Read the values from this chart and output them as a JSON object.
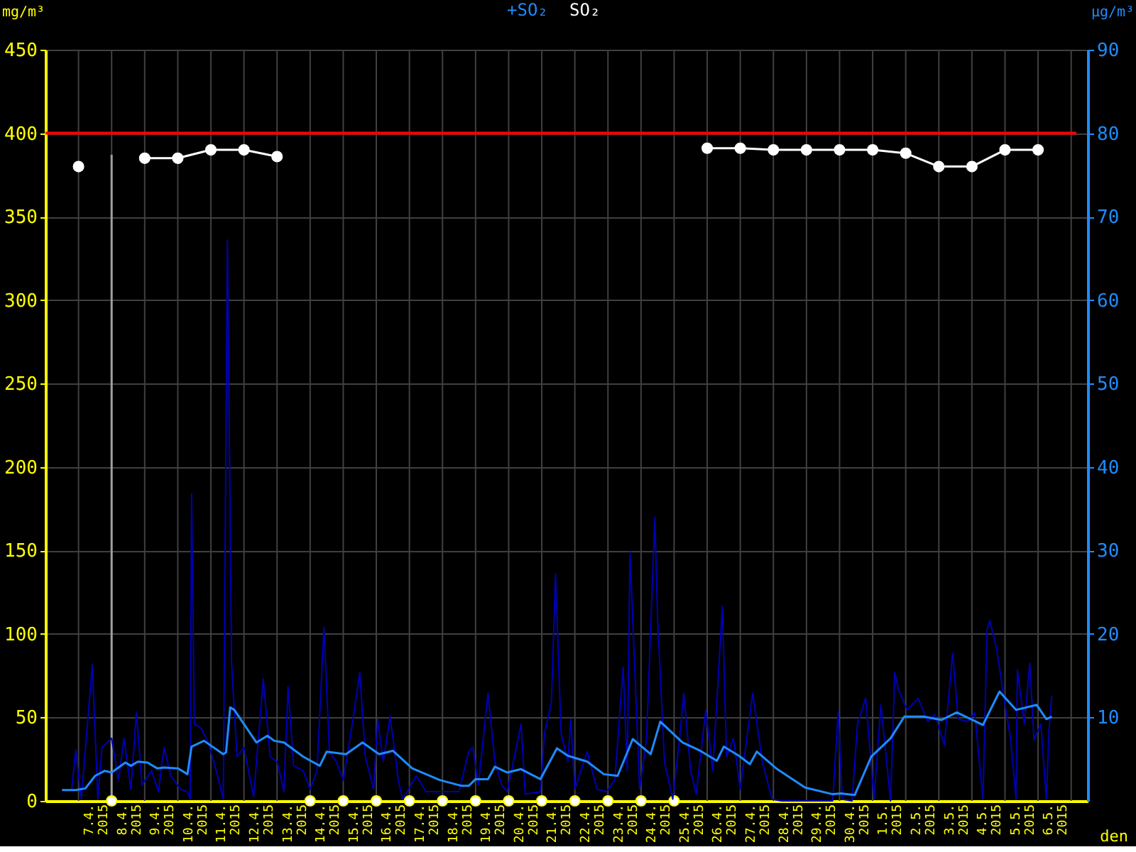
{
  "chart_data": {
    "type": "line",
    "ylabel": "mg/m³",
    "y2label": "µg/m³",
    "xlabel": "den",
    "xlim": [
      "2015-04-06T00:00",
      "2015-05-07T12:00"
    ],
    "ylim": [
      0,
      450
    ],
    "yticks": [
      0,
      50,
      100,
      150,
      200,
      250,
      300,
      350,
      400,
      450
    ],
    "y2lim": [
      0,
      90
    ],
    "y2ticks": [
      10,
      20,
      30,
      40,
      50,
      60,
      70,
      80,
      90
    ],
    "xticks": [
      {
        "value": "2015-04-07T00:00",
        "label": null
      },
      {
        "value": "2015-04-08T00:00",
        "label": null
      },
      {
        "value": "2015-04-09T00:00",
        "label": null
      },
      {
        "value": "2015-04-10T00:00",
        "label": null
      },
      {
        "value": "2015-04-11T00:00",
        "label": null
      },
      {
        "value": "2015-04-12T00:00",
        "label": null
      },
      {
        "value": "2015-04-13T00:00",
        "label": null
      },
      {
        "value": "2015-04-14T00:00",
        "label": null
      },
      {
        "value": "2015-04-15T00:00",
        "label": null
      },
      {
        "value": "2015-04-16T00:00",
        "label": null
      },
      {
        "value": "2015-04-17T00:00",
        "label": null
      },
      {
        "value": "2015-04-18T00:00",
        "label": null
      },
      {
        "value": "2015-04-19T00:00",
        "label": null
      },
      {
        "value": "2015-04-20T00:00",
        "label": null
      },
      {
        "value": "2015-04-21T00:00",
        "label": null
      },
      {
        "value": "2015-04-22T00:00",
        "label": null
      },
      {
        "value": "2015-04-23T00:00",
        "label": null
      },
      {
        "value": "2015-04-24T00:00",
        "label": null
      },
      {
        "value": "2015-04-25T00:00",
        "label": null
      },
      {
        "value": "2015-04-26T00:00",
        "label": null
      },
      {
        "value": "2015-04-27T00:00",
        "label": null
      },
      {
        "value": "2015-04-28T00:00",
        "label": null
      },
      {
        "value": "2015-04-29T00:00",
        "label": null
      },
      {
        "value": "2015-04-30T00:00",
        "label": null
      },
      {
        "value": "2015-05-01T00:00",
        "label": null
      },
      {
        "value": "2015-05-02T00:00",
        "label": null
      },
      {
        "value": "2015-05-03T00:00",
        "label": null
      },
      {
        "value": "2015-05-04T00:00",
        "label": null
      },
      {
        "value": "2015-05-05T00:00",
        "label": null
      },
      {
        "value": "2015-05-06T00:00",
        "label": null
      },
      {
        "value": "2015-05-07T00:00",
        "label": null
      },
      {
        "value": "2015-04-07T12:00",
        "label": "7.4.\n2015"
      },
      {
        "value": "2015-04-08T12:00",
        "label": "8.4.\n2015"
      },
      {
        "value": "2015-04-09T12:00",
        "label": "9.4.\n2015"
      },
      {
        "value": "2015-04-10T12:00",
        "label": "10.4.\n2015"
      },
      {
        "value": "2015-04-11T12:00",
        "label": "11.4.\n2015"
      },
      {
        "value": "2015-04-12T12:00",
        "label": "12.4.\n2015"
      },
      {
        "value": "2015-04-13T12:00",
        "label": "13.4.\n2015"
      },
      {
        "value": "2015-04-14T12:00",
        "label": "14.4.\n2015"
      },
      {
        "value": "2015-04-15T12:00",
        "label": "15.4.\n2015"
      },
      {
        "value": "2015-04-16T12:00",
        "label": "16.4.\n2015"
      },
      {
        "value": "2015-04-17T12:00",
        "label": "17.4.\n2015"
      },
      {
        "value": "2015-04-18T12:00",
        "label": "18.4.\n2015"
      },
      {
        "value": "2015-04-19T12:00",
        "label": "19.4.\n2015"
      },
      {
        "value": "2015-04-20T12:00",
        "label": "20.4.\n2015"
      },
      {
        "value": "2015-04-21T12:00",
        "label": "21.4.\n2015"
      },
      {
        "value": "2015-04-22T12:00",
        "label": "22.4.\n2015"
      },
      {
        "value": "2015-04-23T12:00",
        "label": "23.4.\n2015"
      },
      {
        "value": "2015-04-24T12:00",
        "label": "24.4.\n2015"
      },
      {
        "value": "2015-04-25T12:00",
        "label": "25.4.\n2015"
      },
      {
        "value": "2015-04-26T12:00",
        "label": "26.4.\n2015"
      },
      {
        "value": "2015-04-27T12:00",
        "label": "27.4.\n2015"
      },
      {
        "value": "2015-04-28T12:00",
        "label": "28.4.\n2015"
      },
      {
        "value": "2015-04-29T12:00",
        "label": "29.4.\n2015"
      },
      {
        "value": "2015-04-30T12:00",
        "label": "30.4.\n2015"
      },
      {
        "value": "2015-05-01T12:00",
        "label": "1.5.\n2015"
      },
      {
        "value": "2015-05-02T12:00",
        "label": "2.5.\n2015"
      },
      {
        "value": "2015-05-03T12:00",
        "label": "3.5.\n2015"
      },
      {
        "value": "2015-05-04T12:00",
        "label": "4.5.\n2015"
      },
      {
        "value": "2015-05-05T12:00",
        "label": "5.5.\n2015"
      },
      {
        "value": "2015-05-06T12:00",
        "label": "6.5.\n2015"
      }
    ],
    "grid": true,
    "legend": "top",
    "ref_lines": [
      {
        "axis": "y",
        "value": 400,
        "color": "#ff0000"
      },
      {
        "axis": "x",
        "value": "2015-04-08T00:00",
        "color": "#a0a0a0"
      }
    ],
    "series": [
      {
        "type": "line",
        "axis": "y2",
        "color": "#0000b4",
        "x": [
          "2015-04-06T19:00",
          "2015-04-06T22:00",
          "2015-04-07T02:00",
          "2015-04-07T10:00",
          "2015-04-07T14:00",
          "2015-04-07T17:00",
          "2015-04-08T00:00",
          "2015-04-08T05:00",
          "2015-04-08T09:00",
          "2015-04-08T14:00",
          "2015-04-08T18:00",
          "2015-04-08T22:00",
          "2015-04-09T05:00",
          "2015-04-09T10:00",
          "2015-04-09T14:00",
          "2015-04-09T19:00",
          "2015-04-10T02:00",
          "2015-04-10T07:00",
          "2015-04-10T09:00",
          "2015-04-10T10:00",
          "2015-04-10T12:00",
          "2015-04-10T17:00",
          "2015-04-10T22:00",
          "2015-04-11T04:00",
          "2015-04-11T09:00",
          "2015-04-11T12:00",
          "2015-04-11T15:00",
          "2015-04-11T19:00",
          "2015-04-12T00:00",
          "2015-04-12T07:00",
          "2015-04-12T14:00",
          "2015-04-12T19:00",
          "2015-04-13T00:00",
          "2015-04-13T05:00",
          "2015-04-13T08:00",
          "2015-04-13T12:00",
          "2015-04-13T19:00",
          "2015-04-14T00:00",
          "2015-04-14T05:00",
          "2015-04-14T10:00",
          "2015-04-14T14:00",
          "2015-04-14T19:00",
          "2015-04-15T00:00",
          "2015-04-15T05:00",
          "2015-04-15T09:00",
          "2015-04-15T12:00",
          "2015-04-15T16:00",
          "2015-04-15T22:00",
          "2015-04-16T01:00",
          "2015-04-16T05:00",
          "2015-04-16T10:00",
          "2015-04-16T16:00",
          "2015-04-16T19:00",
          "2015-04-17T05:00",
          "2015-04-17T12:00",
          "2015-04-17T22:00",
          "2015-04-18T12:00",
          "2015-04-18T19:00",
          "2015-04-18T22:00",
          "2015-04-19T02:00",
          "2015-04-19T09:00",
          "2015-04-19T14:00",
          "2015-04-19T19:00",
          "2015-04-19T23:00",
          "2015-04-20T09:00",
          "2015-04-20T12:00",
          "2015-04-20T23:00",
          "2015-04-21T02:00",
          "2015-04-21T07:00",
          "2015-04-21T10:00",
          "2015-04-21T14:00",
          "2015-04-21T19:00",
          "2015-04-21T21:00",
          "2015-04-22T00:00",
          "2015-04-22T09:00",
          "2015-04-22T16:00",
          "2015-04-22T23:00",
          "2015-04-23T05:00",
          "2015-04-23T11:00",
          "2015-04-23T14:00",
          "2015-04-23T16:00",
          "2015-04-23T19:00",
          "2015-04-23T23:00",
          "2015-04-24T04:00",
          "2015-04-24T10:00",
          "2015-04-24T12:00",
          "2015-04-24T17:00",
          "2015-04-24T23:00",
          "2015-04-25T04:00",
          "2015-04-25T07:00",
          "2015-04-25T12:00",
          "2015-04-25T16:00",
          "2015-04-25T23:00",
          "2015-04-26T04:00",
          "2015-04-26T11:00",
          "2015-04-26T14:00",
          "2015-04-26T19:00",
          "2015-04-27T00:00",
          "2015-04-27T09:00",
          "2015-04-27T16:00",
          "2015-04-27T23:00",
          "2015-04-28T06:00",
          "2015-04-28T23:00",
          "2015-04-29T19:00",
          "2015-04-29T23:00",
          "2015-04-30T02:00",
          "2015-04-30T09:00",
          "2015-04-30T13:00",
          "2015-04-30T19:00",
          "2015-05-01T01:00",
          "2015-05-01T06:00",
          "2015-05-01T13:00",
          "2015-05-01T16:00",
          "2015-05-01T19:00",
          "2015-05-02T01:00",
          "2015-05-02T09:00",
          "2015-05-02T16:00",
          "2015-05-02T21:00",
          "2015-05-03T04:00",
          "2015-05-03T10:00",
          "2015-05-03T14:00",
          "2015-05-03T21:00",
          "2015-05-04T02:00",
          "2015-05-04T08:00",
          "2015-05-04T11:00",
          "2015-05-04T13:00",
          "2015-05-04T18:00",
          "2015-05-04T23:00",
          "2015-05-05T04:00",
          "2015-05-05T08:00",
          "2015-05-05T09:00",
          "2015-05-05T14:00",
          "2015-05-05T18:00",
          "2015-05-05T21:00",
          "2015-05-06T02:00",
          "2015-05-06T06:00",
          "2015-05-06T08:00",
          "2015-05-06T10:00"
        ],
        "values": [
          1.4,
          6.1,
          0.2,
          16.3,
          0.2,
          6.4,
          7.5,
          2.5,
          7.5,
          1.4,
          10.6,
          1.9,
          3.6,
          1.1,
          6.4,
          3.0,
          1.4,
          1.1,
          0.2,
          36.8,
          9.2,
          8.7,
          7.0,
          3.6,
          0.2,
          67.2,
          16.5,
          5.3,
          6.4,
          0.5,
          14.6,
          5.3,
          4.7,
          1.1,
          13.7,
          4.2,
          3.6,
          1.4,
          3.6,
          20.8,
          5.9,
          4.7,
          2.5,
          7.5,
          12.0,
          15.4,
          5.3,
          1.4,
          9.8,
          4.7,
          10.1,
          2.5,
          0.2,
          3.0,
          1.1,
          1.1,
          1.1,
          5.9,
          6.4,
          1.9,
          12.9,
          4.7,
          1.9,
          1.1,
          9.2,
          0.8,
          1.1,
          8.1,
          11.8,
          27.2,
          8.1,
          4.7,
          9.8,
          1.4,
          5.9,
          1.4,
          1.1,
          2.5,
          16.0,
          3.6,
          29.8,
          17.7,
          1.4,
          7.5,
          34.0,
          21.9,
          4.7,
          0.2,
          7.5,
          12.9,
          3.6,
          0.8,
          10.9,
          3.6,
          23.3,
          5.3,
          7.5,
          1.4,
          12.9,
          4.7,
          0.2,
          0,
          0,
          0,
          10.6,
          0.2,
          0,
          9.2,
          12.3,
          0.2,
          11.5,
          0,
          15.4,
          13.2,
          10.9,
          12.3,
          9.5,
          10.4,
          6.7,
          17.7,
          9.8,
          9.5,
          10.6,
          0.2,
          20.5,
          21.6,
          18.2,
          12.6,
          7.5,
          0.2,
          15.7,
          9.2,
          16.5,
          7.3,
          9.2,
          0.2,
          8.7,
          12.6
        ]
      },
      {
        "type": "line",
        "axis": "y2",
        "name": "+SO₂",
        "color": "#1e8cff",
        "x": [
          "2015-04-06T12:00",
          "2015-04-06T22:00",
          "2015-04-07T05:00",
          "2015-04-07T12:00",
          "2015-04-07T19:00",
          "2015-04-08T00:00",
          "2015-04-08T10:00",
          "2015-04-08T14:00",
          "2015-04-08T19:00",
          "2015-04-09T02:00",
          "2015-04-09T09:00",
          "2015-04-09T14:00",
          "2015-04-10T00:00",
          "2015-04-10T07:00",
          "2015-04-10T10:00",
          "2015-04-10T19:00",
          "2015-04-11T09:00",
          "2015-04-11T11:00",
          "2015-04-11T14:00",
          "2015-04-11T17:00",
          "2015-04-12T09:00",
          "2015-04-12T17:00",
          "2015-04-12T22:00",
          "2015-04-13T05:00",
          "2015-04-13T19:00",
          "2015-04-14T07:00",
          "2015-04-14T12:00",
          "2015-04-15T02:00",
          "2015-04-15T14:00",
          "2015-04-16T02:00",
          "2015-04-16T12:00",
          "2015-04-17T02:00",
          "2015-04-17T22:00",
          "2015-04-18T14:00",
          "2015-04-18T19:00",
          "2015-04-19T00:00",
          "2015-04-19T09:00",
          "2015-04-19T14:00",
          "2015-04-19T23:00",
          "2015-04-20T09:00",
          "2015-04-20T23:00",
          "2015-04-21T11:00",
          "2015-04-21T19:00",
          "2015-04-22T09:00",
          "2015-04-22T21:00",
          "2015-04-23T07:00",
          "2015-04-23T18:00",
          "2015-04-24T07:00",
          "2015-04-24T14:00",
          "2015-04-25T06:00",
          "2015-04-25T19:00",
          "2015-04-26T07:00",
          "2015-04-26T12:00",
          "2015-04-26T23:00",
          "2015-04-27T07:00",
          "2015-04-27T12:00",
          "2015-04-28T02:00",
          "2015-04-28T23:00",
          "2015-04-29T19:00",
          "2015-04-30T01:00",
          "2015-04-30T11:00",
          "2015-04-30T23:00",
          "2015-05-01T13:00",
          "2015-05-01T23:00",
          "2015-05-02T13:00",
          "2015-05-03T02:00",
          "2015-05-03T13:00",
          "2015-05-04T08:00",
          "2015-05-04T20:00",
          "2015-05-05T08:00",
          "2015-05-05T23:00",
          "2015-05-06T06:00",
          "2015-05-06T10:00"
        ],
        "values": [
          1.3,
          1.3,
          1.5,
          3.0,
          3.6,
          3.4,
          4.6,
          4.2,
          4.7,
          4.6,
          3.9,
          4.0,
          3.9,
          3.2,
          6.5,
          7.2,
          5.6,
          5.8,
          11.2,
          10.9,
          7.0,
          7.8,
          7.2,
          7.0,
          5.3,
          4.2,
          5.9,
          5.6,
          7.0,
          5.6,
          6.0,
          3.9,
          2.5,
          1.8,
          1.8,
          2.6,
          2.6,
          4.1,
          3.4,
          3.8,
          2.6,
          6.3,
          5.4,
          4.7,
          3.2,
          3.0,
          7.4,
          5.6,
          9.5,
          7.0,
          6.0,
          4.8,
          6.5,
          5.4,
          4.4,
          5.9,
          3.9,
          1.6,
          0.8,
          0.9,
          0.7,
          5.3,
          7.5,
          10.1,
          10.1,
          9.7,
          10.6,
          9.1,
          13.1,
          10.9,
          11.5,
          9.8,
          10.1
        ]
      },
      {
        "type": "line",
        "name": "SO₂",
        "color": "#ffffff",
        "marker": "circle",
        "x": [
          "2015-04-07T00:00",
          "2015-04-08T00:00",
          "2015-04-09T00:00",
          "2015-04-10T00:00",
          "2015-04-11T00:00",
          "2015-04-12T00:00",
          "2015-04-13T00:00",
          "2015-04-14T00:00",
          "2015-04-15T00:00",
          "2015-04-16T00:00",
          "2015-04-17T00:00",
          "2015-04-18T00:00",
          "2015-04-19T00:00",
          "2015-04-20T00:00",
          "2015-04-21T00:00",
          "2015-04-22T00:00",
          "2015-04-23T00:00",
          "2015-04-24T00:00",
          "2015-04-25T00:00",
          "2015-04-26T00:00",
          "2015-04-27T00:00",
          "2015-04-28T00:00",
          "2015-04-29T00:00",
          "2015-04-30T00:00",
          "2015-05-01T00:00",
          "2015-05-02T00:00",
          "2015-05-03T00:00",
          "2015-05-04T00:00",
          "2015-05-05T00:00",
          "2015-05-06T00:00"
        ],
        "values": [
          380,
          null,
          385,
          385,
          390,
          390,
          386,
          null,
          null,
          null,
          null,
          null,
          null,
          null,
          null,
          null,
          null,
          null,
          null,
          391,
          391,
          390,
          390,
          390,
          390,
          388,
          380,
          380,
          390,
          390
        ]
      },
      {
        "type": "scatter",
        "color": "#ffffff",
        "marker": "circle",
        "x": [
          "2015-04-08T00:00",
          "2015-04-14T00:00",
          "2015-04-15T00:00",
          "2015-04-16T00:00",
          "2015-04-17T00:00",
          "2015-04-18T00:00",
          "2015-04-19T00:00",
          "2015-04-20T00:00",
          "2015-04-21T00:00",
          "2015-04-22T00:00",
          "2015-04-23T00:00",
          "2015-04-24T00:00",
          "2015-04-25T00:00"
        ],
        "values": [
          0,
          0,
          0,
          0,
          0,
          0,
          0,
          0,
          0,
          0,
          0,
          0,
          0
        ]
      }
    ]
  }
}
